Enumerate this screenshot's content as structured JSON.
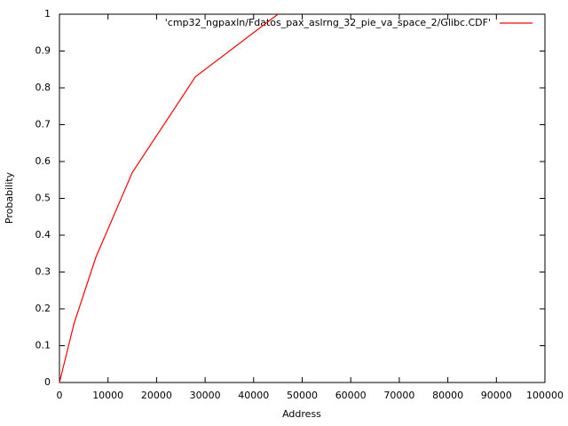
{
  "chart_data": {
    "type": "line",
    "x_label": "Address",
    "y_label": "Probability",
    "series": [
      {
        "name": "'cmp32_ngpaxln/Fdatos_pax_aslrng_32_pie_va_space_2/Glibc.CDF'",
        "color": "#ff0000",
        "x": [
          0,
          3000,
          7500,
          15000,
          28000,
          45000
        ],
        "values": [
          0,
          0.16,
          0.34,
          0.57,
          0.83,
          1
        ]
      }
    ],
    "xlim": [
      0,
      100000
    ],
    "xticks": [
      0,
      10000,
      20000,
      30000,
      40000,
      50000,
      60000,
      70000,
      80000,
      90000,
      100000
    ],
    "ylim": [
      0,
      1
    ],
    "yticks": [
      0,
      0.1,
      0.2,
      0.3,
      0.4,
      0.5,
      0.6,
      0.7,
      0.8,
      0.9,
      1
    ],
    "grid": false,
    "legend": "top right"
  }
}
